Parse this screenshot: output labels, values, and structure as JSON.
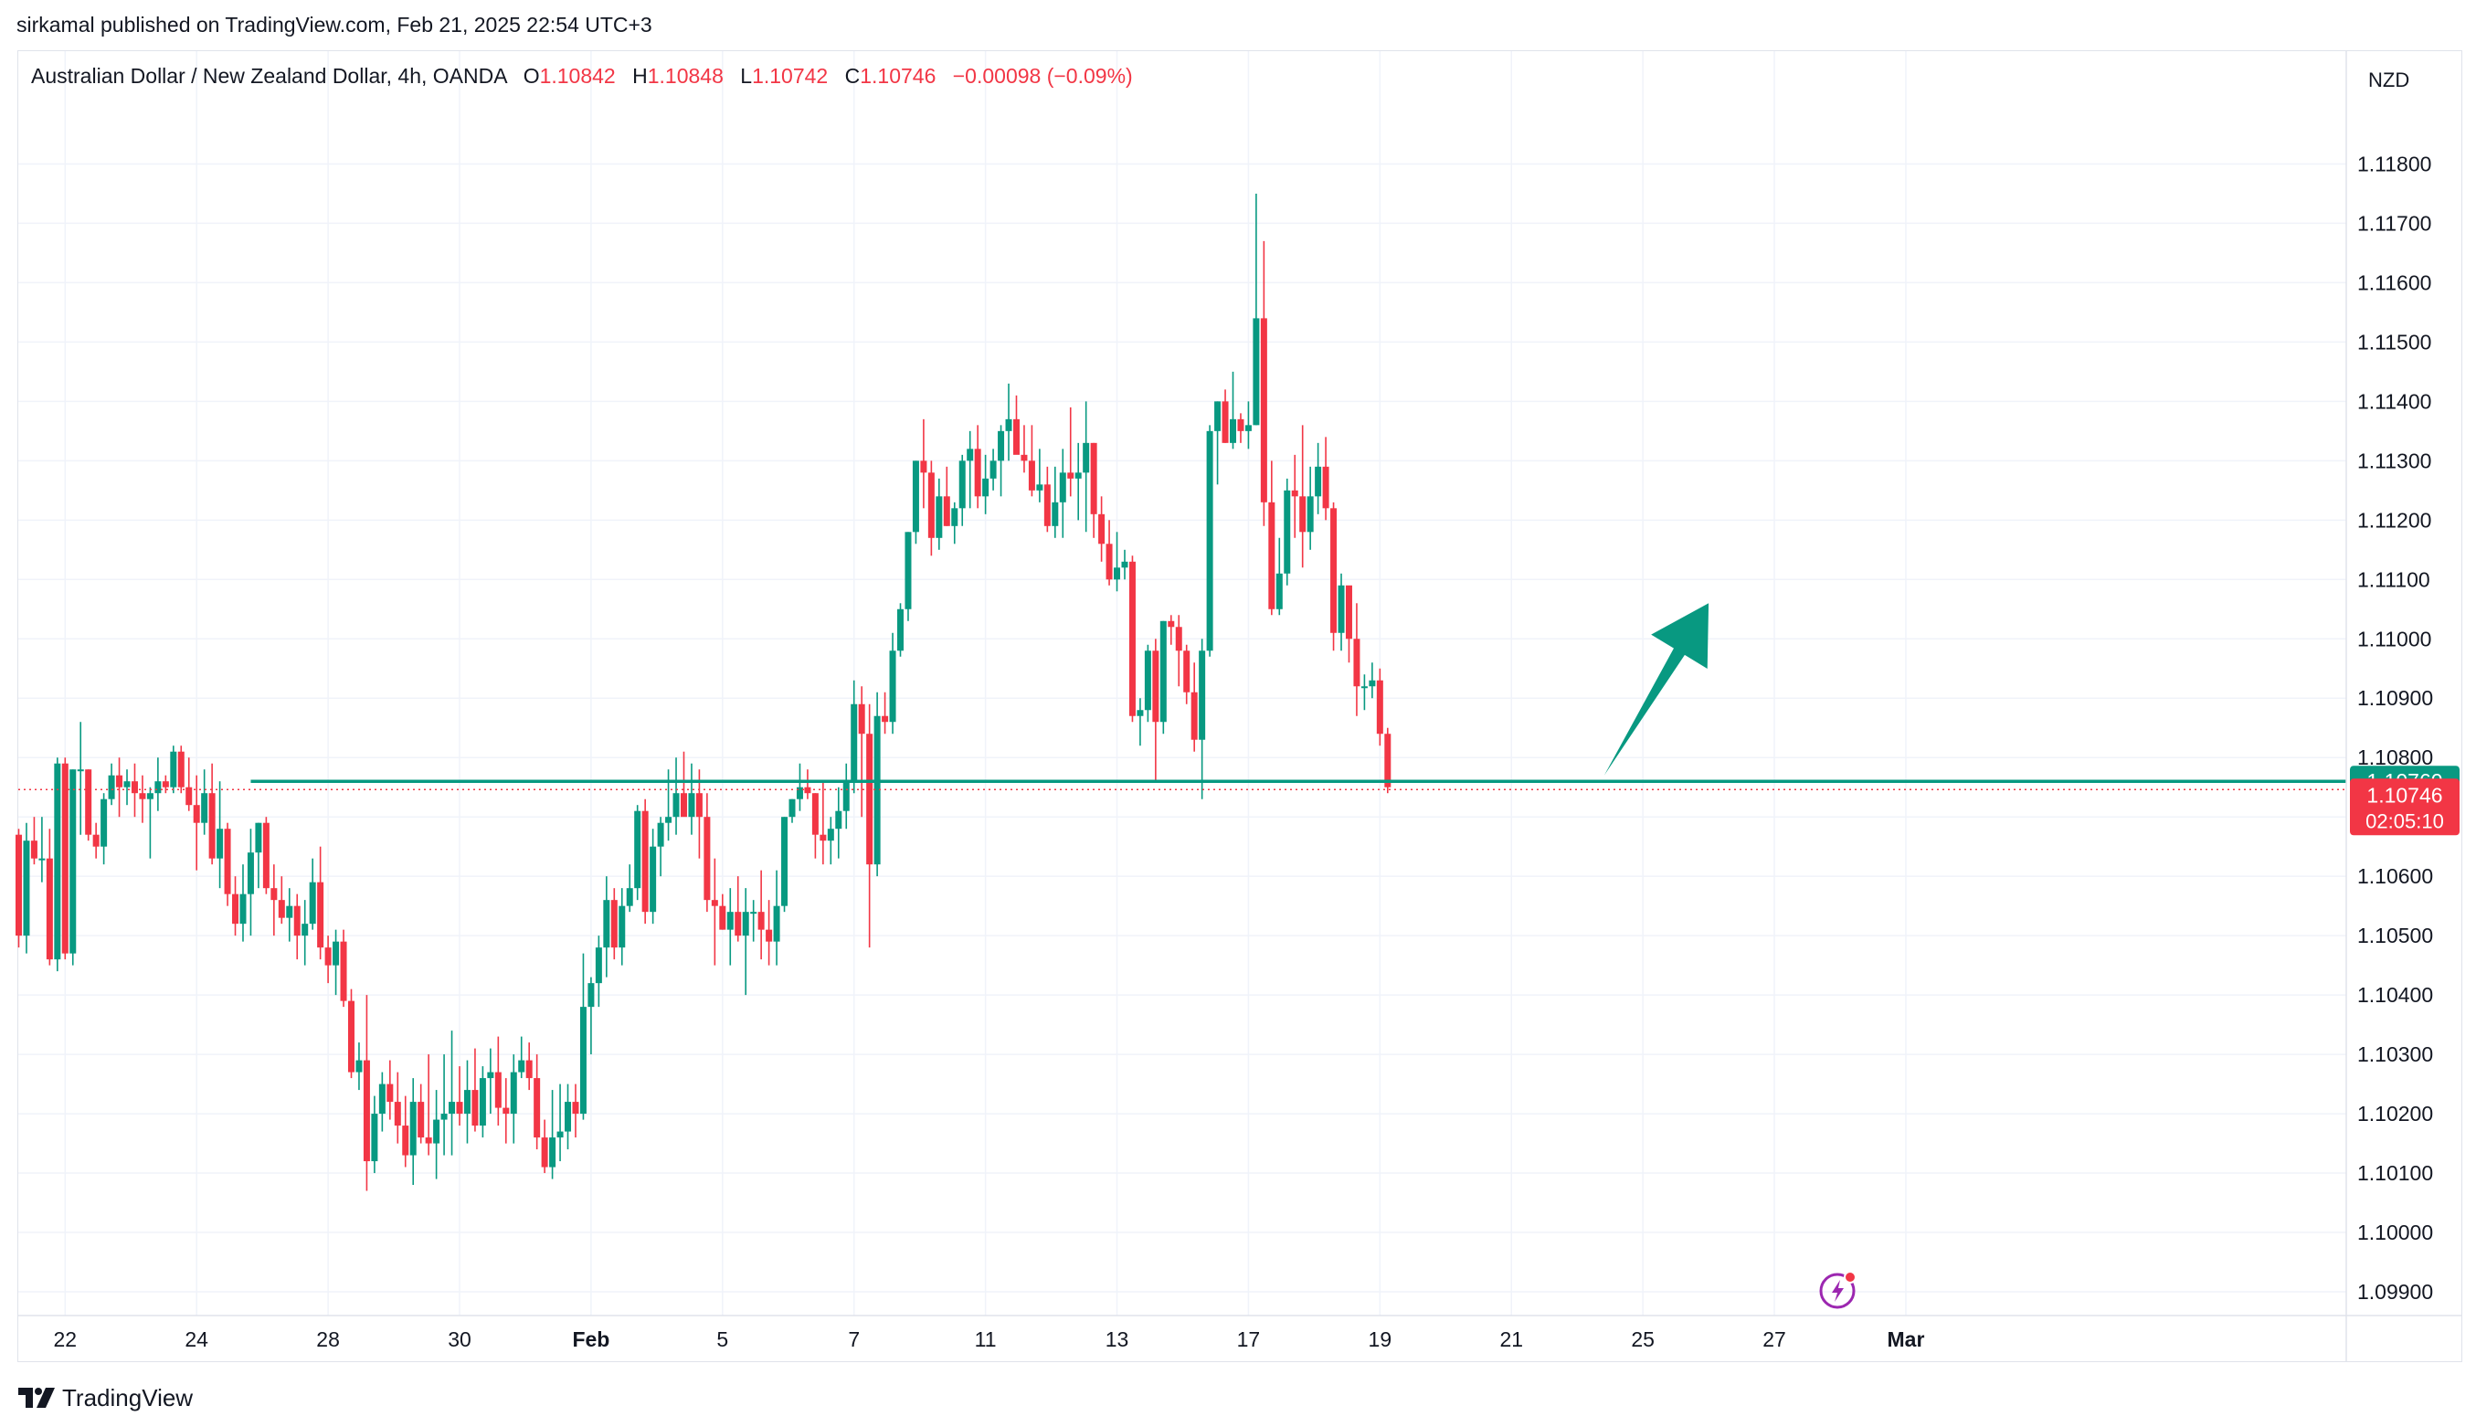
{
  "publisher": "sirkamal published on TradingView.com, Feb 21, 2025 22:54 UTC+3",
  "brand": "TradingView",
  "legend": {
    "symbol": "Australian Dollar / New Zealand Dollar, 4h, OANDA",
    "open_label": "O",
    "open": "1.10842",
    "high_label": "H",
    "high": "1.10848",
    "low_label": "L",
    "low": "1.10742",
    "close_label": "C",
    "close": "1.10746",
    "change": "−0.00098 (−0.09%)"
  },
  "colors": {
    "up": "#089981",
    "down": "#f23645",
    "grid": "#f0f3fa",
    "text": "#131722",
    "arrow": "#089981",
    "support_line": "#089981"
  },
  "chart_data": {
    "type": "candlestick",
    "currency": "NZD",
    "timeframe": "4h",
    "ylim": [
      1.0986,
      1.1199
    ],
    "y_ticks": [
      "1.11800",
      "1.11700",
      "1.11600",
      "1.11500",
      "1.11400",
      "1.11300",
      "1.11200",
      "1.11100",
      "1.11000",
      "1.10900",
      "1.10800",
      "1.10700",
      "1.10600",
      "1.10500",
      "1.10400",
      "1.10300",
      "1.10200",
      "1.10100",
      "1.10000",
      "1.09900"
    ],
    "x_ticks": [
      {
        "label": "22",
        "idx": 6
      },
      {
        "label": "24",
        "idx": 23
      },
      {
        "label": "28",
        "idx": 40
      },
      {
        "label": "30",
        "idx": 57
      },
      {
        "label": "Feb",
        "idx": 74
      },
      {
        "label": "5",
        "idx": 91
      },
      {
        "label": "7",
        "idx": 108
      },
      {
        "label": "11",
        "idx": 125
      },
      {
        "label": "13",
        "idx": 142
      },
      {
        "label": "17",
        "idx": 159
      },
      {
        "label": "19",
        "idx": 176
      },
      {
        "label": "21",
        "idx": 193
      },
      {
        "label": "25",
        "idx": 210
      },
      {
        "label": "27",
        "idx": 227
      },
      {
        "label": "Mar",
        "idx": 244
      }
    ],
    "support_level": {
      "price": 1.1076,
      "label": "1.10760",
      "from_idx": 30
    },
    "last_price": {
      "price": 1.10746,
      "label": "1.10746",
      "countdown": "02:05:10"
    },
    "arrow": {
      "from": [
        205,
        1.1077
      ],
      "to": [
        218.5,
        1.1106
      ]
    },
    "candles": [
      [
        1.1067,
        1.1068,
        1.1048,
        1.105
      ],
      [
        1.105,
        1.1069,
        1.1047,
        1.1066
      ],
      [
        1.1066,
        1.107,
        1.1062,
        1.1063
      ],
      [
        1.1063,
        1.107,
        1.1059,
        1.1063
      ],
      [
        1.1063,
        1.1068,
        1.1045,
        1.1046
      ],
      [
        1.1046,
        1.108,
        1.1044,
        1.1079
      ],
      [
        1.1079,
        1.108,
        1.1046,
        1.1047
      ],
      [
        1.1047,
        1.1078,
        1.1045,
        1.1078
      ],
      [
        1.1078,
        1.1086,
        1.1067,
        1.1078
      ],
      [
        1.1078,
        1.1078,
        1.1066,
        1.1067
      ],
      [
        1.1067,
        1.1069,
        1.1063,
        1.1065
      ],
      [
        1.1065,
        1.1074,
        1.1062,
        1.1073
      ],
      [
        1.1073,
        1.1079,
        1.1072,
        1.1077
      ],
      [
        1.1077,
        1.108,
        1.107,
        1.1075
      ],
      [
        1.1075,
        1.1078,
        1.1072,
        1.1076
      ],
      [
        1.1076,
        1.1079,
        1.107,
        1.1074
      ],
      [
        1.1074,
        1.1077,
        1.1069,
        1.1073
      ],
      [
        1.1073,
        1.1075,
        1.1063,
        1.1074
      ],
      [
        1.1074,
        1.108,
        1.1071,
        1.1076
      ],
      [
        1.1076,
        1.1077,
        1.1074,
        1.1075
      ],
      [
        1.1075,
        1.1082,
        1.1074,
        1.1081
      ],
      [
        1.1081,
        1.1082,
        1.1074,
        1.1075
      ],
      [
        1.1075,
        1.108,
        1.1071,
        1.1072
      ],
      [
        1.1072,
        1.1077,
        1.1061,
        1.1069
      ],
      [
        1.1069,
        1.1078,
        1.1067,
        1.1074
      ],
      [
        1.1074,
        1.1079,
        1.1062,
        1.1063
      ],
      [
        1.1063,
        1.1076,
        1.1058,
        1.1068
      ],
      [
        1.1068,
        1.1069,
        1.1055,
        1.1057
      ],
      [
        1.1057,
        1.106,
        1.105,
        1.1052
      ],
      [
        1.1052,
        1.1062,
        1.1049,
        1.1057
      ],
      [
        1.1057,
        1.1068,
        1.105,
        1.1064
      ],
      [
        1.1064,
        1.1069,
        1.1058,
        1.1069
      ],
      [
        1.1069,
        1.107,
        1.1057,
        1.1058
      ],
      [
        1.1058,
        1.1062,
        1.105,
        1.1056
      ],
      [
        1.1056,
        1.106,
        1.1052,
        1.1053
      ],
      [
        1.1053,
        1.1058,
        1.1049,
        1.1055
      ],
      [
        1.1055,
        1.1057,
        1.1046,
        1.105
      ],
      [
        1.105,
        1.1056,
        1.1045,
        1.1052
      ],
      [
        1.1052,
        1.1063,
        1.1051,
        1.1059
      ],
      [
        1.1059,
        1.1065,
        1.1046,
        1.1048
      ],
      [
        1.1048,
        1.105,
        1.1042,
        1.1045
      ],
      [
        1.1045,
        1.1051,
        1.104,
        1.1049
      ],
      [
        1.1049,
        1.1051,
        1.1038,
        1.1039
      ],
      [
        1.1039,
        1.1041,
        1.1026,
        1.1027
      ],
      [
        1.1027,
        1.1032,
        1.1024,
        1.1029
      ],
      [
        1.1029,
        1.104,
        1.1007,
        1.1012
      ],
      [
        1.1012,
        1.1023,
        1.101,
        1.102
      ],
      [
        1.102,
        1.1027,
        1.1017,
        1.1025
      ],
      [
        1.1025,
        1.1029,
        1.1019,
        1.1022
      ],
      [
        1.1022,
        1.1027,
        1.1015,
        1.1018
      ],
      [
        1.1018,
        1.1023,
        1.1011,
        1.1013
      ],
      [
        1.1013,
        1.1026,
        1.1008,
        1.1022
      ],
      [
        1.1022,
        1.1025,
        1.1015,
        1.1016
      ],
      [
        1.1016,
        1.103,
        1.1013,
        1.1015
      ],
      [
        1.1015,
        1.1024,
        1.1009,
        1.1019
      ],
      [
        1.1019,
        1.103,
        1.1013,
        1.102
      ],
      [
        1.102,
        1.1034,
        1.1013,
        1.1022
      ],
      [
        1.1022,
        1.1028,
        1.1018,
        1.102
      ],
      [
        1.102,
        1.1029,
        1.1015,
        1.1024
      ],
      [
        1.1024,
        1.1031,
        1.1017,
        1.1018
      ],
      [
        1.1018,
        1.1028,
        1.1016,
        1.1026
      ],
      [
        1.1026,
        1.1031,
        1.102,
        1.1027
      ],
      [
        1.1027,
        1.1033,
        1.1018,
        1.1021
      ],
      [
        1.1021,
        1.1026,
        1.1015,
        1.102
      ],
      [
        1.102,
        1.103,
        1.1015,
        1.1027
      ],
      [
        1.1027,
        1.1033,
        1.1026,
        1.1029
      ],
      [
        1.1029,
        1.1032,
        1.1024,
        1.1026
      ],
      [
        1.1026,
        1.103,
        1.1014,
        1.1016
      ],
      [
        1.1016,
        1.1019,
        1.101,
        1.1011
      ],
      [
        1.1011,
        1.1024,
        1.1009,
        1.1016
      ],
      [
        1.1016,
        1.1025,
        1.1012,
        1.1017
      ],
      [
        1.1017,
        1.1025,
        1.1014,
        1.1022
      ],
      [
        1.1022,
        1.1025,
        1.1016,
        1.102
      ],
      [
        1.102,
        1.1047,
        1.1019,
        1.1038
      ],
      [
        1.1038,
        1.1043,
        1.103,
        1.1042
      ],
      [
        1.1042,
        1.105,
        1.1038,
        1.1048
      ],
      [
        1.1048,
        1.106,
        1.1043,
        1.1056
      ],
      [
        1.1056,
        1.1058,
        1.1046,
        1.1048
      ],
      [
        1.1048,
        1.1058,
        1.1045,
        1.1055
      ],
      [
        1.1055,
        1.1062,
        1.1054,
        1.1058
      ],
      [
        1.1058,
        1.1072,
        1.1056,
        1.1071
      ],
      [
        1.1071,
        1.1073,
        1.1052,
        1.1054
      ],
      [
        1.1054,
        1.1068,
        1.1052,
        1.1065
      ],
      [
        1.1065,
        1.107,
        1.106,
        1.1069
      ],
      [
        1.1069,
        1.1078,
        1.1066,
        1.107
      ],
      [
        1.107,
        1.108,
        1.1067,
        1.1074
      ],
      [
        1.1074,
        1.1081,
        1.1071,
        1.107
      ],
      [
        1.107,
        1.1079,
        1.1067,
        1.1074
      ],
      [
        1.1074,
        1.1078,
        1.1063,
        1.107
      ],
      [
        1.107,
        1.1074,
        1.1054,
        1.1056
      ],
      [
        1.1056,
        1.1063,
        1.1045,
        1.1055
      ],
      [
        1.1055,
        1.1057,
        1.1051,
        1.1051
      ],
      [
        1.1051,
        1.1058,
        1.1045,
        1.1054
      ],
      [
        1.1054,
        1.106,
        1.1049,
        1.105
      ],
      [
        1.105,
        1.1058,
        1.104,
        1.1054
      ],
      [
        1.1054,
        1.1056,
        1.1049,
        1.1054
      ],
      [
        1.1054,
        1.1061,
        1.1046,
        1.1051
      ],
      [
        1.1051,
        1.1056,
        1.1045,
        1.1049
      ],
      [
        1.1049,
        1.1061,
        1.1045,
        1.1055
      ],
      [
        1.1055,
        1.107,
        1.1054,
        1.107
      ],
      [
        1.107,
        1.1073,
        1.1069,
        1.1073
      ],
      [
        1.1073,
        1.1079,
        1.1071,
        1.1075
      ],
      [
        1.1075,
        1.1078,
        1.1073,
        1.1074
      ],
      [
        1.1074,
        1.1074,
        1.1063,
        1.1067
      ],
      [
        1.1067,
        1.1076,
        1.1062,
        1.1066
      ],
      [
        1.1066,
        1.107,
        1.1062,
        1.1068
      ],
      [
        1.1068,
        1.1075,
        1.1063,
        1.1071
      ],
      [
        1.1071,
        1.1079,
        1.1068,
        1.1076
      ],
      [
        1.1076,
        1.1093,
        1.1074,
        1.1089
      ],
      [
        1.1089,
        1.1092,
        1.107,
        1.1084
      ],
      [
        1.1084,
        1.1089,
        1.1048,
        1.1062
      ],
      [
        1.1062,
        1.1091,
        1.106,
        1.1087
      ],
      [
        1.1087,
        1.1091,
        1.1084,
        1.1086
      ],
      [
        1.1086,
        1.1101,
        1.1084,
        1.1098
      ],
      [
        1.1098,
        1.1106,
        1.1097,
        1.1105
      ],
      [
        1.1105,
        1.1118,
        1.1103,
        1.1118
      ],
      [
        1.1118,
        1.113,
        1.1116,
        1.113
      ],
      [
        1.113,
        1.1137,
        1.1122,
        1.1128
      ],
      [
        1.1128,
        1.113,
        1.1114,
        1.1117
      ],
      [
        1.1117,
        1.1127,
        1.1115,
        1.1124
      ],
      [
        1.1124,
        1.1129,
        1.1119,
        1.1119
      ],
      [
        1.1119,
        1.1123,
        1.1116,
        1.1122
      ],
      [
        1.1122,
        1.1131,
        1.1119,
        1.113
      ],
      [
        1.113,
        1.1135,
        1.1122,
        1.1132
      ],
      [
        1.1132,
        1.1136,
        1.1122,
        1.1124
      ],
      [
        1.1124,
        1.1131,
        1.1121,
        1.1127
      ],
      [
        1.1127,
        1.1132,
        1.1125,
        1.113
      ],
      [
        1.113,
        1.1136,
        1.1124,
        1.1135
      ],
      [
        1.1135,
        1.1143,
        1.113,
        1.1137
      ],
      [
        1.1137,
        1.1141,
        1.1133,
        1.1131
      ],
      [
        1.1131,
        1.1136,
        1.1128,
        1.113
      ],
      [
        1.113,
        1.1136,
        1.1124,
        1.1125
      ],
      [
        1.1125,
        1.1132,
        1.1123,
        1.1126
      ],
      [
        1.1126,
        1.1129,
        1.1118,
        1.1119
      ],
      [
        1.1119,
        1.1129,
        1.1117,
        1.1123
      ],
      [
        1.1123,
        1.1132,
        1.1117,
        1.1128
      ],
      [
        1.1128,
        1.1139,
        1.1124,
        1.1127
      ],
      [
        1.1127,
        1.1133,
        1.112,
        1.1128
      ],
      [
        1.1128,
        1.114,
        1.1118,
        1.1133
      ],
      [
        1.1133,
        1.1133,
        1.1117,
        1.1121
      ],
      [
        1.1121,
        1.1124,
        1.1113,
        1.1116
      ],
      [
        1.1116,
        1.112,
        1.1109,
        1.111
      ],
      [
        1.111,
        1.1118,
        1.1108,
        1.1112
      ],
      [
        1.1112,
        1.1115,
        1.111,
        1.1113
      ],
      [
        1.1113,
        1.1114,
        1.1086,
        1.1087
      ],
      [
        1.1087,
        1.109,
        1.1082,
        1.1088
      ],
      [
        1.1088,
        1.1099,
        1.1086,
        1.1098
      ],
      [
        1.1098,
        1.11,
        1.1076,
        1.1086
      ],
      [
        1.1086,
        1.1103,
        1.1084,
        1.1103
      ],
      [
        1.1103,
        1.1104,
        1.1099,
        1.1102
      ],
      [
        1.1102,
        1.1104,
        1.1092,
        1.1098
      ],
      [
        1.1098,
        1.1099,
        1.1089,
        1.1091
      ],
      [
        1.1091,
        1.1096,
        1.1081,
        1.1083
      ],
      [
        1.1083,
        1.11,
        1.1073,
        1.1098
      ],
      [
        1.1098,
        1.1136,
        1.1097,
        1.1135
      ],
      [
        1.1135,
        1.114,
        1.1126,
        1.114
      ],
      [
        1.114,
        1.1142,
        1.1133,
        1.1133
      ],
      [
        1.1133,
        1.1145,
        1.1132,
        1.1137
      ],
      [
        1.1137,
        1.1138,
        1.1133,
        1.1135
      ],
      [
        1.1135,
        1.114,
        1.1132,
        1.1136
      ],
      [
        1.1136,
        1.1175,
        1.1136,
        1.1154
      ],
      [
        1.1154,
        1.1167,
        1.1119,
        1.1123
      ],
      [
        1.1123,
        1.113,
        1.1104,
        1.1105
      ],
      [
        1.1105,
        1.1117,
        1.1104,
        1.1111
      ],
      [
        1.1111,
        1.1127,
        1.1109,
        1.1125
      ],
      [
        1.1125,
        1.1131,
        1.1117,
        1.1124
      ],
      [
        1.1124,
        1.1136,
        1.1112,
        1.1118
      ],
      [
        1.1118,
        1.1129,
        1.1115,
        1.1124
      ],
      [
        1.1124,
        1.1133,
        1.1121,
        1.1129
      ],
      [
        1.1129,
        1.1134,
        1.112,
        1.1122
      ],
      [
        1.1122,
        1.1123,
        1.1098,
        1.1101
      ],
      [
        1.1101,
        1.1111,
        1.1098,
        1.1109
      ],
      [
        1.1109,
        1.1107,
        1.1096,
        1.11
      ],
      [
        1.11,
        1.1106,
        1.1087,
        1.1092
      ],
      [
        1.1092,
        1.1094,
        1.1088,
        1.1092
      ],
      [
        1.1092,
        1.1096,
        1.109,
        1.1093
      ],
      [
        1.1093,
        1.1095,
        1.1082,
        1.1084
      ],
      [
        1.1084,
        1.1085,
        1.1074,
        1.1075
      ]
    ]
  }
}
